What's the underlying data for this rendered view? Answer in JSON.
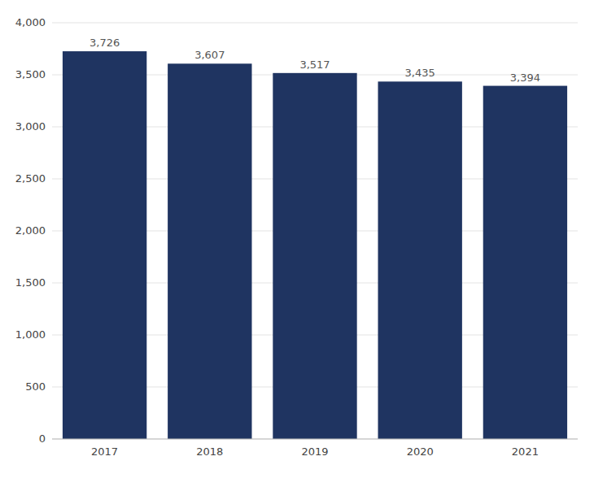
{
  "chart_data": {
    "type": "bar",
    "categories": [
      "2017",
      "2018",
      "2019",
      "2020",
      "2021"
    ],
    "values": [
      3726,
      3607,
      3517,
      3435,
      3394
    ],
    "value_labels": [
      "3,726",
      "3,607",
      "3,517",
      "3,435",
      "3,394"
    ],
    "data_labels": true,
    "color": "#1f3461",
    "ylim": [
      0,
      4000
    ],
    "yticks": [
      0,
      500,
      {
        "value": 1000,
        "label": "1,000"
      },
      {
        "value": 1500,
        "label": "1,500"
      },
      {
        "value": 2000,
        "label": "2,000"
      },
      {
        "value": 2500,
        "label": "2,500"
      },
      {
        "value": 3000,
        "label": "3,000"
      },
      {
        "value": 3500,
        "label": "3,500"
      },
      {
        "value": 4000,
        "label": "4,000"
      }
    ],
    "grid": true
  }
}
